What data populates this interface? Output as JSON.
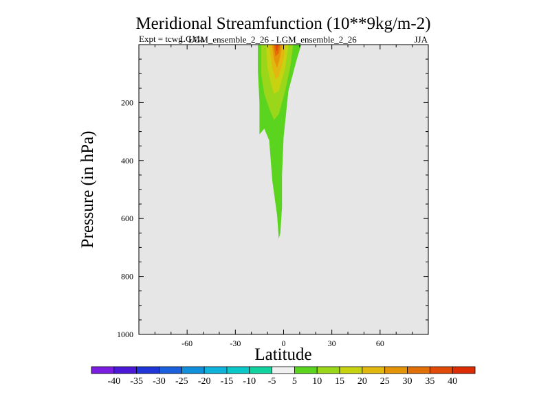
{
  "chart_data": {
    "type": "contour",
    "title": "Meridional Streamfunction (10**9kg/m-2)",
    "experiment_label": "Expt = tcwg",
    "experiment_overlap_text": "LGMa",
    "experiment_name": "LGM_ensemble_2_26 - LGM_ensemble_2_26",
    "season": "JJA",
    "xlabel": "Latitude",
    "ylabel": "Pressure (in hPa)",
    "xlim": [
      -90,
      90
    ],
    "ylim": [
      1000,
      0
    ],
    "xticks": [
      -60,
      -30,
      0,
      30,
      60
    ],
    "yticks": [
      200,
      400,
      600,
      800,
      1000
    ],
    "background_color": "#e6e6e6",
    "colorbar": {
      "levels": [
        -40,
        -35,
        -30,
        -25,
        -20,
        -15,
        -10,
        -5,
        5,
        10,
        15,
        20,
        25,
        30,
        35,
        40
      ],
      "colors": [
        "#7a1de0",
        "#4a18d6",
        "#1f35d8",
        "#1a5fdc",
        "#128fdc",
        "#10b3dc",
        "#0ac8c8",
        "#12d3a0",
        "#f0f0f0",
        "#5ad41e",
        "#9ad61a",
        "#c7d310",
        "#e2b810",
        "#e59408",
        "#e27008",
        "#e04c08",
        "#dc2c04"
      ]
    },
    "contours": [
      {
        "level": 5,
        "color": "#5ad41e",
        "points": [
          [
            -13,
            0
          ],
          [
            11,
            0
          ],
          [
            8,
            55
          ],
          [
            3,
            160
          ],
          [
            0,
            320
          ],
          [
            -1,
            450
          ],
          [
            -1,
            560
          ],
          [
            -2,
            650
          ],
          [
            -3,
            670
          ],
          [
            -4,
            590
          ],
          [
            -7,
            470
          ],
          [
            -9,
            330
          ],
          [
            -12,
            290
          ],
          [
            -15,
            310
          ],
          [
            -15,
            200
          ],
          [
            -16,
            90
          ],
          [
            -16,
            0
          ]
        ]
      },
      {
        "level": 10,
        "color": "#9ad61a",
        "points": [
          [
            -11,
            0
          ],
          [
            6,
            0
          ],
          [
            4,
            80
          ],
          [
            1,
            160
          ],
          [
            -3,
            240
          ],
          [
            -6,
            260
          ],
          [
            -9,
            220
          ],
          [
            -12,
            170
          ],
          [
            -14,
            100
          ],
          [
            -14,
            0
          ]
        ]
      },
      {
        "level": 15,
        "color": "#c7d310",
        "points": [
          [
            -9,
            0
          ],
          [
            3,
            0
          ],
          [
            1,
            80
          ],
          [
            -3,
            160
          ],
          [
            -6,
            170
          ],
          [
            -8,
            130
          ],
          [
            -10,
            80
          ],
          [
            -11,
            0
          ]
        ]
      },
      {
        "level": 20,
        "color": "#e2b810",
        "points": [
          [
            -8,
            0
          ],
          [
            1,
            0
          ],
          [
            0,
            50
          ],
          [
            -3,
            110
          ],
          [
            -5,
            120
          ],
          [
            -7,
            80
          ],
          [
            -9,
            0
          ]
        ]
      },
      {
        "level": 25,
        "color": "#e59408",
        "points": [
          [
            -7,
            0
          ],
          [
            -1,
            0
          ],
          [
            -2,
            40
          ],
          [
            -4,
            80
          ],
          [
            -6,
            50
          ],
          [
            -7,
            10
          ]
        ]
      },
      {
        "level": 30,
        "color": "#e27008",
        "points": [
          [
            -6,
            0
          ],
          [
            -2,
            0
          ],
          [
            -3,
            30
          ],
          [
            -5,
            40
          ],
          [
            -6,
            10
          ]
        ]
      },
      {
        "level": 35,
        "color": "#e04c08",
        "points": [
          [
            -5,
            0
          ],
          [
            -3,
            0
          ],
          [
            -4,
            25
          ],
          [
            -5,
            15
          ]
        ]
      }
    ]
  }
}
